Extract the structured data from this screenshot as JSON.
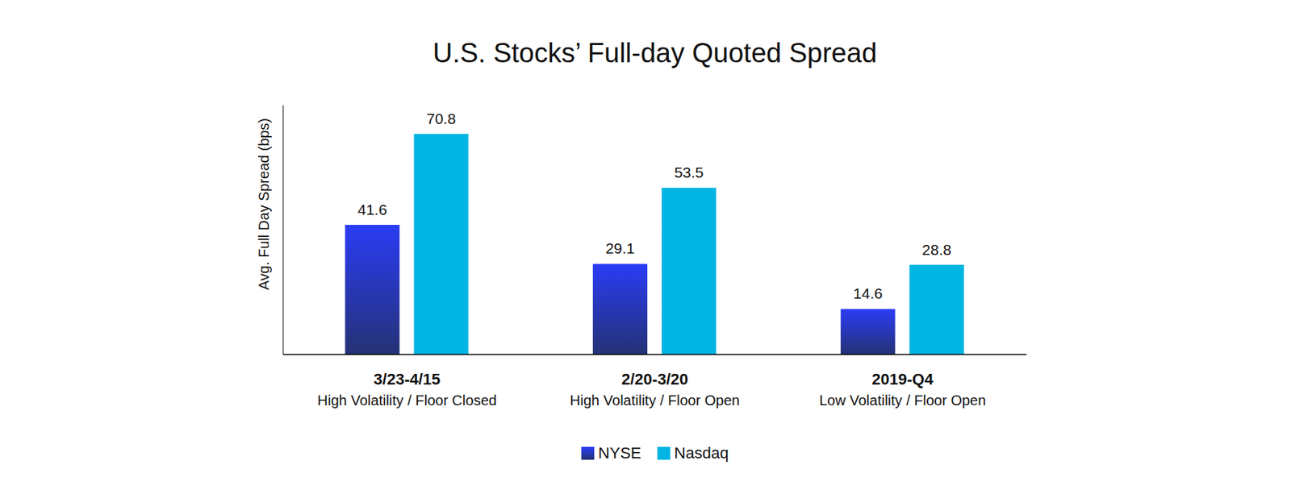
{
  "chart_data": {
    "type": "bar",
    "title": "U.S. Stocks’ Full-day Quoted Spread",
    "y_label": "Avg. Full Day Spread (bps)",
    "categories": [
      "3/23-4/15",
      "2/20-3/20",
      "2019-Q4"
    ],
    "category_subtitles": [
      "High Volatility / Floor Closed",
      "High Volatility / Floor Open",
      "Low Volatility / Floor Open"
    ],
    "series": [
      {
        "name": "NYSE",
        "color": "#2a3cf5",
        "values": [
          41.6,
          29.1,
          14.6
        ]
      },
      {
        "name": "Nasdaq",
        "color": "#00b5e2",
        "values": [
          70.8,
          53.5,
          28.8
        ]
      }
    ],
    "ylim": [
      0,
      80
    ],
    "data_labels": true,
    "tick_labels": "x",
    "legend": "bottom",
    "grid": false
  }
}
